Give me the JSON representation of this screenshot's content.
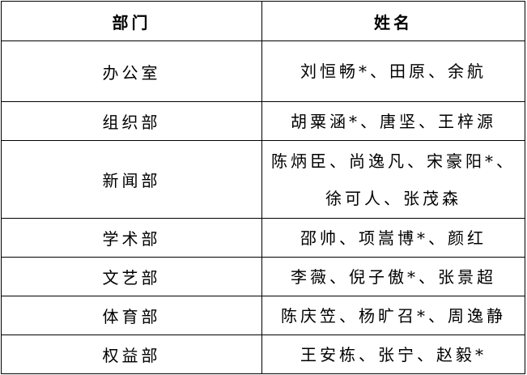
{
  "headers": {
    "department": "部门",
    "names": "姓名"
  },
  "rows": [
    {
      "department": "办公室",
      "names": [
        "刘恒畅*、田原、余航"
      ]
    },
    {
      "department": "组织部",
      "names": [
        "胡粟涵*、唐坚、王梓源"
      ]
    },
    {
      "department": "新闻部",
      "names": [
        "陈炳臣、尚逸凡、宋豪阳*、",
        "徐可人、张茂森"
      ]
    },
    {
      "department": "学术部",
      "names": [
        "邵帅、项嵩博*、颜红"
      ]
    },
    {
      "department": "文艺部",
      "names": [
        "李薇、倪子傲*、张景超"
      ]
    },
    {
      "department": "体育部",
      "names": [
        "陈庆笠、杨旷召*、周逸静"
      ]
    },
    {
      "department": "权益部",
      "names": [
        "王安栋、张宁、赵毅*"
      ]
    }
  ]
}
